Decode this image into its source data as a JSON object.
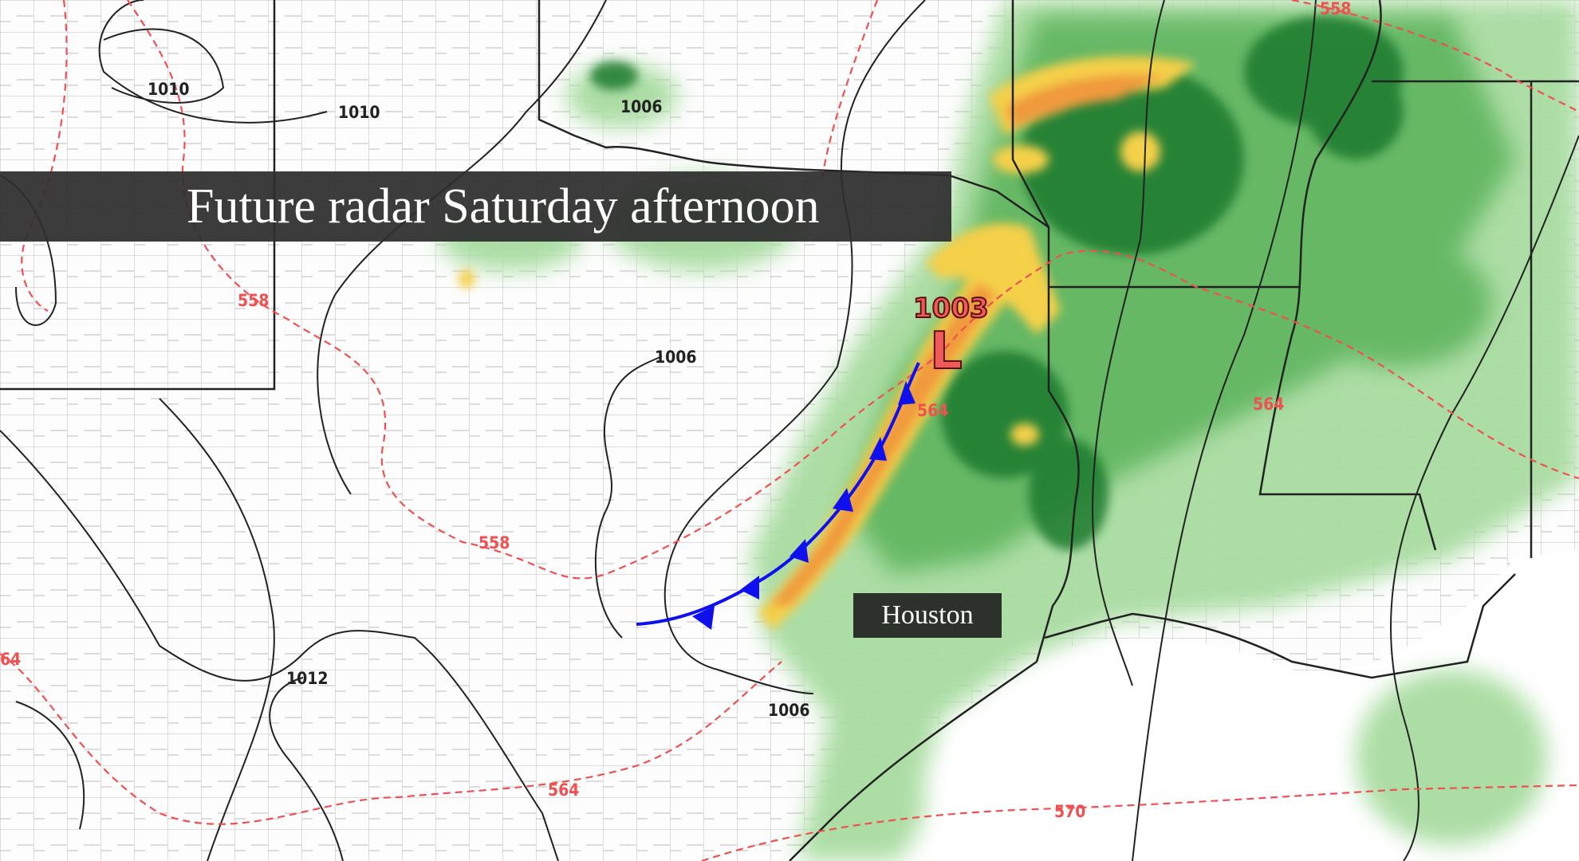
{
  "title": "Future radar Saturday afternoon",
  "city_label": "Houston",
  "low_pressure": {
    "value": "1003",
    "symbol": "L"
  },
  "pressure_contour_labels": [
    "1010",
    "1010",
    "1006",
    "1006",
    "1006",
    "1012"
  ],
  "thickness_contour_labels": [
    "558",
    "558",
    "558",
    "564",
    "564",
    "564",
    "570",
    "64"
  ],
  "colors": {
    "banner": "#2d2d2d",
    "radar_light": "#a8dca0",
    "radar_mid": "#5fb55f",
    "radar_dark": "#1f7a2e",
    "radar_yellow": "#f5d04a",
    "radar_orange": "#f09a3e",
    "low_label": "#f05a5a",
    "thickness_line": "#f05050",
    "cold_front": "#1010ee",
    "isobar": "#222222"
  }
}
